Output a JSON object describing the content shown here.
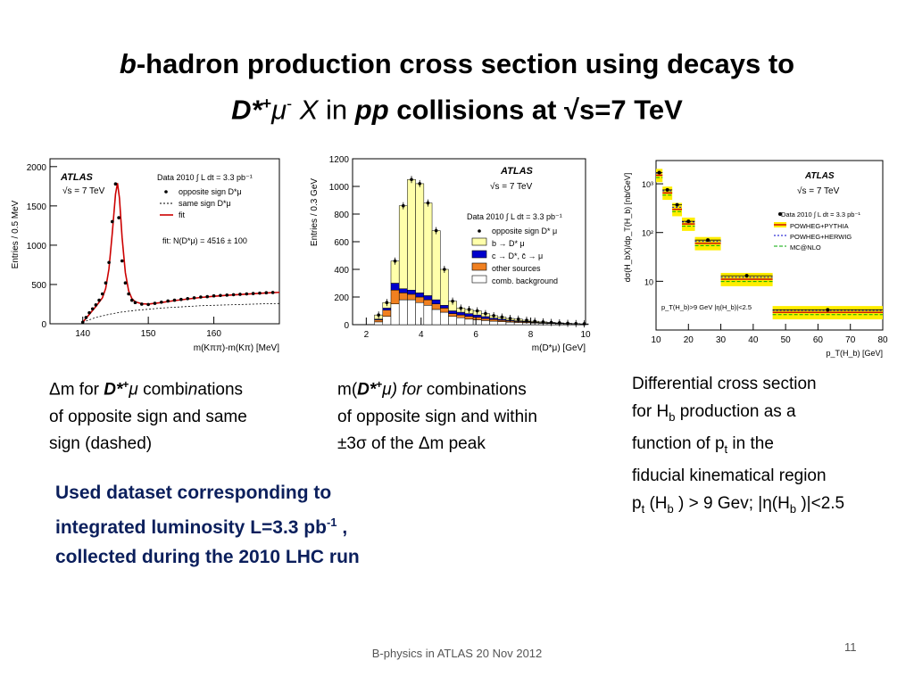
{
  "slide": {
    "title_line1_b": "b",
    "title_line1_rest": "-hadron production cross section using  decays to",
    "title_line2_dstar": "D*",
    "title_line2_plus": "+",
    "title_line2_mu": "μ",
    "title_line2_minus": "-",
    "title_line2_x": " X",
    "title_line2_in": " in ",
    "title_line2_pp": "pp",
    "title_line2_rest": " collisions at √s=7 TeV",
    "footer": "B-physics in ATLAS  20 Nov 2012",
    "page_number": "11",
    "dataset_line1": "Used dataset corresponding  to",
    "dataset_line2_a": "integrated luminosity  L=3.3 pb",
    "dataset_line2_sup": "-1",
    "dataset_line2_b": " ,",
    "dataset_line3": "collected during the  2010 LHC run"
  },
  "captions": {
    "c1_l1_a": "Δm  for ",
    "c1_l1_dstar": "D*",
    "c1_l1_plus": "+",
    "c1_l1_mu": "μ",
    "c1_l1_b": "  combi",
    "c1_l1_n": "n",
    "c1_l1_c": "ations",
    "c1_l2": "of opposite sign and  same",
    "c1_l3": "sign  (dashed)",
    "c2_l1_a": "m(",
    "c2_l1_dstar": "D*",
    "c2_l1_plus": "+",
    "c2_l1_mu": "μ) for ",
    "c2_l1_b": " combinations",
    "c2_l2": "of opposite sign and   within",
    "c2_l3": "±3σ  of the Δm peak",
    "c3_l1": "Differential cross  section",
    "c3_l2_a": "for  H",
    "c3_l2_sub": "b",
    "c3_l2_b": " production  as  a",
    "c3_l3_a": "function of  p",
    "c3_l3_sub": "t",
    "c3_l3_b": "   in the",
    "c3_l4": "fiducial  kinematical region",
    "c3_l5_a": "p",
    "c3_l5_sub1": "t",
    "c3_l5_b": " (H",
    "c3_l5_sub2": "b",
    "c3_l5_c": " ) > 9 Gev; |η(H",
    "c3_l5_sub3": "b",
    "c3_l5_d": " )|<2.5"
  },
  "chart_data": [
    {
      "type": "scatter",
      "xlabel": "m(Kππ)-m(Kπ) [MeV]",
      "ylabel": "Entries / 0.5 MeV",
      "xlim": [
        135,
        170
      ],
      "ylim": [
        0,
        2100
      ],
      "xticks": [
        "140",
        "150",
        "160"
      ],
      "yticks": [
        "0",
        "500",
        "1000",
        "1500",
        "2000"
      ],
      "experiment": "ATLAS",
      "energy": "√s = 7 TeV",
      "lumi": "Data 2010  ∫ L dt = 3.3 pb⁻¹",
      "fit_text": "fit: N(D*μ) = 4516 ± 100",
      "legend": [
        "opposite sign D*μ",
        "same sign D*μ",
        "fit"
      ],
      "opposite_sign": {
        "x": [
          140,
          140.5,
          141,
          141.5,
          142,
          142.5,
          143,
          143.5,
          144,
          144.5,
          145,
          145.5,
          146,
          146.5,
          147,
          147.5,
          148,
          149,
          150,
          151,
          152,
          153,
          154,
          155,
          156,
          157,
          158,
          159,
          160,
          161,
          162,
          163,
          164,
          165,
          166,
          167,
          168,
          169
        ],
        "y": [
          20,
          80,
          140,
          190,
          240,
          300,
          380,
          520,
          780,
          1300,
          1780,
          1350,
          800,
          520,
          380,
          300,
          270,
          250,
          245,
          260,
          275,
          290,
          300,
          310,
          320,
          330,
          340,
          345,
          355,
          360,
          365,
          370,
          375,
          380,
          385,
          390,
          395,
          398
        ]
      },
      "same_sign": {
        "x": [
          140,
          142,
          144,
          146,
          148,
          150,
          152,
          154,
          156,
          158,
          160,
          162,
          164,
          166,
          168,
          170
        ],
        "y": [
          20,
          80,
          120,
          150,
          170,
          185,
          200,
          210,
          220,
          230,
          235,
          240,
          245,
          250,
          255,
          258
        ]
      },
      "fit": {
        "x": [
          140,
          141,
          142,
          143,
          143.5,
          144,
          144.5,
          145,
          145.3,
          145.6,
          146,
          146.5,
          147,
          147.5,
          148,
          149,
          150,
          152,
          154,
          156,
          158,
          160,
          162,
          164,
          166,
          168,
          170
        ],
        "y": [
          20,
          120,
          220,
          330,
          450,
          700,
          1150,
          1650,
          1790,
          1600,
          1100,
          650,
          420,
          320,
          280,
          255,
          250,
          270,
          295,
          315,
          335,
          350,
          362,
          372,
          382,
          392,
          400
        ]
      }
    },
    {
      "type": "bar",
      "xlabel": "m(D*μ) [GeV]",
      "ylabel": "Entries / 0.3 GeV",
      "xlim": [
        1.5,
        10
      ],
      "ylim": [
        0,
        1200
      ],
      "xticks": [
        "2",
        "4",
        "6",
        "8",
        "10"
      ],
      "yticks": [
        "0",
        "200",
        "400",
        "600",
        "800",
        "1000",
        "1200"
      ],
      "experiment": "ATLAS",
      "energy": "√s = 7 TeV",
      "lumi": "Data 2010  ∫ L dt = 3.3 pb⁻¹",
      "legend": [
        "opposite sign D* μ",
        "b → D* μ",
        "c → D*, c̄ → μ",
        "other sources",
        "comb. background"
      ],
      "colors": {
        "b": "#ffffaa",
        "c": "#0000cc",
        "other": "#f08020",
        "comb": "#ffffff"
      },
      "bin_edges": [
        2.3,
        2.6,
        2.9,
        3.2,
        3.5,
        3.8,
        4.1,
        4.4,
        4.7,
        5.0,
        5.3,
        5.6,
        5.9,
        6.2,
        6.5,
        6.8,
        7.1,
        7.4,
        7.7,
        8.0,
        8.3,
        8.6,
        8.9,
        9.2,
        9.5,
        9.8,
        10.1
      ],
      "data": [
        70,
        160,
        460,
        860,
        1050,
        1020,
        880,
        680,
        400,
        170,
        120,
        110,
        100,
        80,
        65,
        55,
        45,
        40,
        32,
        25,
        20,
        16,
        13,
        10,
        8,
        6
      ],
      "comb": [
        20,
        60,
        150,
        180,
        180,
        160,
        140,
        110,
        90,
        60,
        50,
        40,
        35,
        30,
        25,
        22,
        18,
        16,
        14,
        12,
        10,
        8,
        7,
        6,
        5,
        4
      ],
      "other": [
        15,
        45,
        100,
        50,
        40,
        40,
        40,
        40,
        30,
        20,
        20,
        20,
        18,
        14,
        12,
        10,
        8,
        7,
        6,
        4,
        3,
        3,
        2,
        1,
        1,
        1
      ],
      "c": [
        5,
        15,
        50,
        30,
        30,
        30,
        30,
        30,
        20,
        20,
        20,
        20,
        17,
        14,
        10,
        8,
        6,
        5,
        4,
        3,
        2,
        2,
        1,
        1,
        1,
        1
      ],
      "b": [
        30,
        40,
        160,
        600,
        800,
        790,
        670,
        500,
        260,
        70,
        30,
        30,
        30,
        22,
        18,
        15,
        13,
        12,
        8,
        6,
        5,
        3,
        3,
        2,
        1,
        0
      ]
    },
    {
      "type": "bar",
      "xlabel": "p_T(H_b)  [GeV]",
      "ylabel": "dσ(H_bX)/dp_T(H_b)  [nb/GeV]",
      "ylog": true,
      "xlim": [
        10,
        80
      ],
      "ylim": [
        1,
        3000
      ],
      "xticks": [
        "10",
        "20",
        "30",
        "40",
        "50",
        "60",
        "70",
        "80"
      ],
      "yticks": [
        "10",
        "10²",
        "10³"
      ],
      "experiment": "ATLAS",
      "energy": "√s = 7 TeV",
      "lumi": "Data 2010  ∫ L dt = 3.3 pb⁻¹",
      "cuts": "p_T(H_b)>9 GeV  |η(H_b)|<2.5",
      "legend": [
        "POWHEG+PYTHIA",
        "POWHEG+HERWIG",
        "MC@NLO"
      ],
      "bin_edges": [
        9,
        12,
        15,
        18,
        22,
        30,
        46,
        80
      ],
      "data": [
        1700,
        750,
        370,
        170,
        70,
        13,
        2.6
      ],
      "theory": [
        1500,
        650,
        300,
        150,
        60,
        11,
        2.3
      ]
    }
  ]
}
